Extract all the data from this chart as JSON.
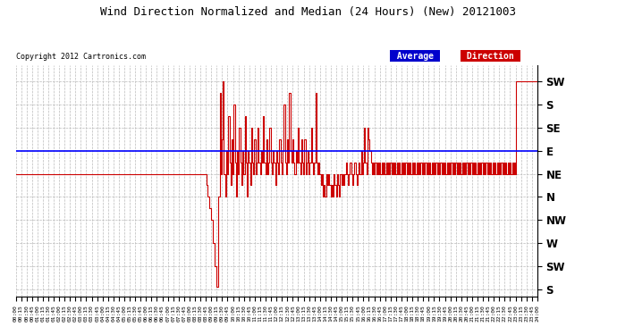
{
  "title": "Wind Direction Normalized and Median (24 Hours) (New) 20121003",
  "copyright": "Copyright 2012 Cartronics.com",
  "background_color": "#ffffff",
  "plot_bg_color": "#ffffff",
  "grid_color": "#bbbbbb",
  "ytick_labels": [
    "SW",
    "S",
    "SE",
    "E",
    "NE",
    "N",
    "NW",
    "W",
    "SW",
    "S"
  ],
  "ytick_values": [
    9,
    8,
    7,
    6,
    5,
    4,
    3,
    2,
    1,
    0
  ],
  "ylim": [
    -0.3,
    9.7
  ],
  "median_line_y": 6,
  "median_line_color": "#0000ff",
  "red_line_color": "#cc0000",
  "avg_bg_color": "#0000cc",
  "dir_bg_color": "#cc0000",
  "wind_data": [
    [
      0,
      5
    ],
    [
      525,
      5
    ],
    [
      526,
      4.5
    ],
    [
      530,
      4
    ],
    [
      535,
      3.5
    ],
    [
      540,
      3
    ],
    [
      545,
      2
    ],
    [
      550,
      1
    ],
    [
      553,
      0.1
    ],
    [
      557,
      0.1
    ],
    [
      560,
      4
    ],
    [
      563,
      8.5
    ],
    [
      566,
      5
    ],
    [
      569,
      6.5
    ],
    [
      572,
      9
    ],
    [
      575,
      5
    ],
    [
      578,
      4
    ],
    [
      581,
      6
    ],
    [
      584,
      5
    ],
    [
      587,
      7.5
    ],
    [
      590,
      5.5
    ],
    [
      593,
      4.5
    ],
    [
      596,
      6.5
    ],
    [
      599,
      5
    ],
    [
      602,
      8
    ],
    [
      605,
      5.5
    ],
    [
      608,
      4
    ],
    [
      611,
      6
    ],
    [
      614,
      5
    ],
    [
      617,
      7
    ],
    [
      620,
      5.5
    ],
    [
      623,
      4.5
    ],
    [
      626,
      6
    ],
    [
      629,
      5
    ],
    [
      632,
      7.5
    ],
    [
      635,
      5.5
    ],
    [
      638,
      4
    ],
    [
      641,
      6
    ],
    [
      644,
      5.5
    ],
    [
      647,
      4.5
    ],
    [
      650,
      7
    ],
    [
      653,
      5.5
    ],
    [
      656,
      5
    ],
    [
      659,
      6.5
    ],
    [
      662,
      5
    ],
    [
      665,
      5.5
    ],
    [
      668,
      7
    ],
    [
      671,
      5.5
    ],
    [
      674,
      5
    ],
    [
      677,
      6
    ],
    [
      680,
      5.5
    ],
    [
      683,
      7.5
    ],
    [
      686,
      5.5
    ],
    [
      689,
      5
    ],
    [
      692,
      6.5
    ],
    [
      695,
      5
    ],
    [
      698,
      5.5
    ],
    [
      701,
      7
    ],
    [
      704,
      5.5
    ],
    [
      707,
      5
    ],
    [
      710,
      6
    ],
    [
      713,
      5.5
    ],
    [
      716,
      4.5
    ],
    [
      719,
      6
    ],
    [
      722,
      5.5
    ],
    [
      725,
      5
    ],
    [
      728,
      6.5
    ],
    [
      731,
      5.5
    ],
    [
      734,
      5
    ],
    [
      737,
      6
    ],
    [
      740,
      8
    ],
    [
      743,
      5.5
    ],
    [
      746,
      5
    ],
    [
      749,
      6.5
    ],
    [
      752,
      5.5
    ],
    [
      755,
      8.5
    ],
    [
      758,
      6
    ],
    [
      761,
      5.5
    ],
    [
      764,
      6.5
    ],
    [
      767,
      5.5
    ],
    [
      770,
      5
    ],
    [
      773,
      6
    ],
    [
      776,
      5.5
    ],
    [
      779,
      7
    ],
    [
      782,
      5.5
    ],
    [
      785,
      5
    ],
    [
      788,
      6.5
    ],
    [
      791,
      5.5
    ],
    [
      794,
      5
    ],
    [
      797,
      6.5
    ],
    [
      800,
      5
    ],
    [
      803,
      5.5
    ],
    [
      806,
      6
    ],
    [
      809,
      5
    ],
    [
      812,
      5.5
    ],
    [
      815,
      7
    ],
    [
      818,
      5.5
    ],
    [
      821,
      5
    ],
    [
      824,
      5.5
    ],
    [
      827,
      8.5
    ],
    [
      830,
      5.5
    ],
    [
      833,
      5
    ],
    [
      836,
      5.5
    ],
    [
      839,
      5
    ],
    [
      842,
      4.5
    ],
    [
      845,
      5
    ],
    [
      848,
      4
    ],
    [
      851,
      4.5
    ],
    [
      854,
      4
    ],
    [
      857,
      5
    ],
    [
      860,
      4.5
    ],
    [
      863,
      5
    ],
    [
      866,
      4.5
    ],
    [
      869,
      4
    ],
    [
      872,
      4.5
    ],
    [
      875,
      4
    ],
    [
      878,
      5
    ],
    [
      881,
      4.5
    ],
    [
      884,
      4
    ],
    [
      887,
      5
    ],
    [
      890,
      4.5
    ],
    [
      893,
      4
    ],
    [
      896,
      5
    ],
    [
      899,
      4.5
    ],
    [
      902,
      5
    ],
    [
      905,
      4.5
    ],
    [
      908,
      5
    ],
    [
      911,
      5.5
    ],
    [
      914,
      5
    ],
    [
      917,
      4.5
    ],
    [
      920,
      5
    ],
    [
      923,
      5.5
    ],
    [
      926,
      5
    ],
    [
      929,
      4.5
    ],
    [
      932,
      5
    ],
    [
      935,
      5.5
    ],
    [
      938,
      5
    ],
    [
      941,
      4.5
    ],
    [
      944,
      5
    ],
    [
      947,
      5.5
    ],
    [
      950,
      5
    ],
    [
      953,
      6
    ],
    [
      956,
      5
    ],
    [
      959,
      5.5
    ],
    [
      962,
      7
    ],
    [
      965,
      5.5
    ],
    [
      968,
      5
    ],
    [
      971,
      7
    ],
    [
      974,
      6.5
    ],
    [
      977,
      6
    ],
    [
      980,
      5.5
    ],
    [
      983,
      5
    ],
    [
      986,
      5.5
    ],
    [
      989,
      5
    ],
    [
      992,
      5.5
    ],
    [
      995,
      5
    ],
    [
      998,
      5.5
    ],
    [
      1001,
      5
    ],
    [
      1004,
      5.5
    ],
    [
      1007,
      5
    ],
    [
      1010,
      5.5
    ],
    [
      1013,
      5
    ],
    [
      1016,
      5.5
    ],
    [
      1019,
      5
    ],
    [
      1022,
      5.5
    ],
    [
      1025,
      5
    ],
    [
      1028,
      5.5
    ],
    [
      1031,
      5
    ],
    [
      1034,
      5.5
    ],
    [
      1037,
      5
    ],
    [
      1040,
      5.5
    ],
    [
      1043,
      5
    ],
    [
      1046,
      5.5
    ],
    [
      1049,
      5
    ],
    [
      1052,
      5.5
    ],
    [
      1055,
      5
    ],
    [
      1058,
      5.5
    ],
    [
      1061,
      5
    ],
    [
      1064,
      5.5
    ],
    [
      1067,
      5
    ],
    [
      1070,
      5.5
    ],
    [
      1073,
      5
    ],
    [
      1076,
      5.5
    ],
    [
      1079,
      5
    ],
    [
      1082,
      5.5
    ],
    [
      1085,
      5
    ],
    [
      1088,
      5.5
    ],
    [
      1091,
      5
    ],
    [
      1094,
      5.5
    ],
    [
      1097,
      5
    ],
    [
      1100,
      5.5
    ],
    [
      1103,
      5
    ],
    [
      1106,
      5.5
    ],
    [
      1109,
      5
    ],
    [
      1112,
      5.5
    ],
    [
      1115,
      5
    ],
    [
      1118,
      5.5
    ],
    [
      1121,
      5
    ],
    [
      1124,
      5.5
    ],
    [
      1127,
      5
    ],
    [
      1130,
      5.5
    ],
    [
      1133,
      5
    ],
    [
      1136,
      5.5
    ],
    [
      1139,
      5
    ],
    [
      1142,
      5.5
    ],
    [
      1145,
      5
    ],
    [
      1148,
      5.5
    ],
    [
      1151,
      5
    ],
    [
      1154,
      5.5
    ],
    [
      1157,
      5
    ],
    [
      1160,
      5.5
    ],
    [
      1163,
      5
    ],
    [
      1166,
      5.5
    ],
    [
      1169,
      5
    ],
    [
      1172,
      5.5
    ],
    [
      1175,
      5
    ],
    [
      1178,
      5.5
    ],
    [
      1181,
      5
    ],
    [
      1184,
      5.5
    ],
    [
      1187,
      5
    ],
    [
      1190,
      5.5
    ],
    [
      1193,
      5
    ],
    [
      1196,
      5.5
    ],
    [
      1199,
      5
    ],
    [
      1202,
      5.5
    ],
    [
      1205,
      5
    ],
    [
      1208,
      5.5
    ],
    [
      1211,
      5
    ],
    [
      1214,
      5.5
    ],
    [
      1217,
      5
    ],
    [
      1220,
      5.5
    ],
    [
      1223,
      5
    ],
    [
      1226,
      5.5
    ],
    [
      1229,
      5
    ],
    [
      1232,
      5.5
    ],
    [
      1235,
      5
    ],
    [
      1238,
      5.5
    ],
    [
      1241,
      5
    ],
    [
      1244,
      5.5
    ],
    [
      1247,
      5
    ],
    [
      1250,
      5.5
    ],
    [
      1253,
      5
    ],
    [
      1256,
      5.5
    ],
    [
      1259,
      5
    ],
    [
      1262,
      5.5
    ],
    [
      1265,
      5
    ],
    [
      1268,
      5.5
    ],
    [
      1271,
      5
    ],
    [
      1274,
      5.5
    ],
    [
      1277,
      5
    ],
    [
      1280,
      5.5
    ],
    [
      1283,
      5
    ],
    [
      1286,
      5.5
    ],
    [
      1289,
      5
    ],
    [
      1292,
      5.5
    ],
    [
      1295,
      5
    ],
    [
      1298,
      5.5
    ],
    [
      1301,
      5
    ],
    [
      1304,
      5.5
    ],
    [
      1307,
      5
    ],
    [
      1310,
      5.5
    ],
    [
      1313,
      5
    ],
    [
      1316,
      5.5
    ],
    [
      1319,
      5
    ],
    [
      1322,
      5.5
    ],
    [
      1325,
      5
    ],
    [
      1328,
      5.5
    ],
    [
      1331,
      5
    ],
    [
      1334,
      5.5
    ],
    [
      1337,
      5
    ],
    [
      1340,
      5.5
    ],
    [
      1343,
      5
    ],
    [
      1346,
      5.5
    ],
    [
      1349,
      5
    ],
    [
      1352,
      5.5
    ],
    [
      1355,
      5
    ],
    [
      1358,
      5.5
    ],
    [
      1361,
      5
    ],
    [
      1364,
      5.5
    ],
    [
      1367,
      5
    ],
    [
      1370,
      5.5
    ],
    [
      1373,
      5
    ],
    [
      1376,
      5.5
    ],
    [
      1379,
      5
    ],
    [
      1382,
      9
    ],
    [
      1440,
      9
    ]
  ]
}
